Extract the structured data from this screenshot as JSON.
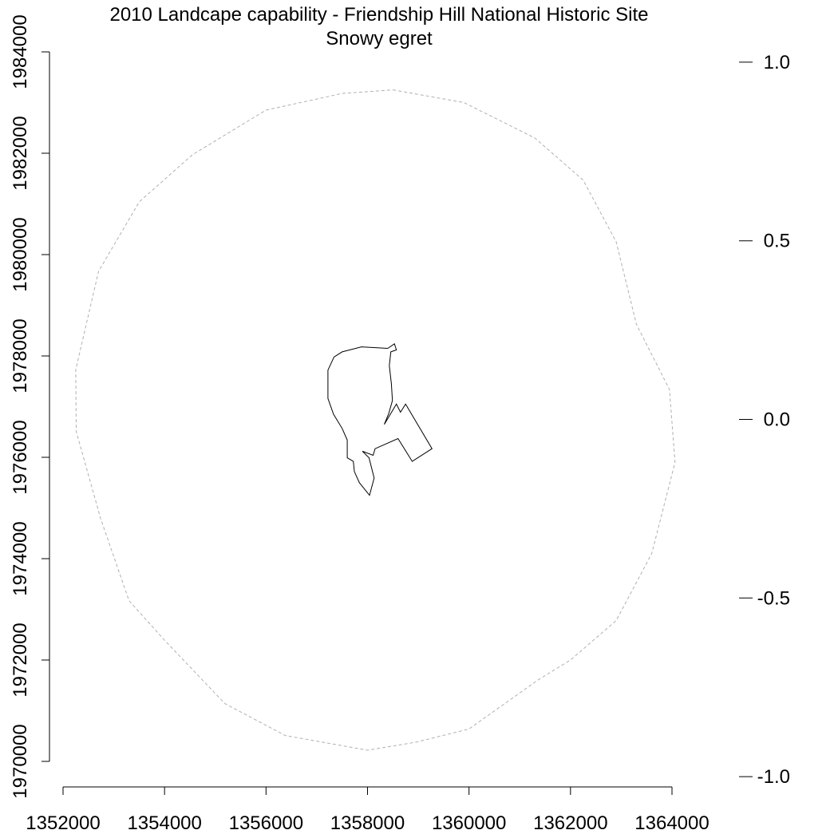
{
  "chart_data": {
    "type": "line",
    "title": "2010 Landcape capability - Friendship Hill National Historic Site",
    "subtitle": "Snowy egret",
    "xlabel": "",
    "ylabel": "",
    "xlim": [
      1352000,
      1364000
    ],
    "ylim": [
      1970000,
      1984000
    ],
    "x_ticks": [
      "1352000",
      "1354000",
      "1356000",
      "1358000",
      "1360000",
      "1362000",
      "1364000"
    ],
    "y_ticks": [
      "1970000",
      "1972000",
      "1974000",
      "1976000",
      "1978000",
      "1980000",
      "1982000",
      "1984000"
    ],
    "legend_scale": {
      "range": [
        -1.25,
        1.25
      ],
      "ticks": [
        "1.0",
        "0.5",
        "0.0",
        "-0.5",
        "-1.0"
      ],
      "values": [
        1.0,
        0.5,
        0.0,
        -0.5,
        -1.0
      ]
    },
    "grid": false,
    "series": [
      {
        "style": "dashed-grey",
        "points": [
          [
            1358500,
            1983250
          ],
          [
            1359900,
            1983000
          ],
          [
            1361300,
            1982300
          ],
          [
            1362250,
            1981470
          ],
          [
            1362900,
            1980250
          ],
          [
            1363300,
            1978620
          ],
          [
            1363950,
            1977340
          ],
          [
            1364060,
            1975900
          ],
          [
            1363600,
            1974100
          ],
          [
            1362900,
            1972780
          ],
          [
            1362000,
            1972000
          ],
          [
            1361350,
            1971600
          ],
          [
            1360000,
            1970640
          ],
          [
            1358960,
            1970380
          ],
          [
            1358000,
            1970220
          ],
          [
            1356380,
            1970510
          ],
          [
            1355190,
            1971140
          ],
          [
            1354000,
            1972390
          ],
          [
            1353300,
            1973170
          ],
          [
            1352740,
            1974790
          ],
          [
            1352260,
            1976510
          ],
          [
            1352250,
            1977730
          ],
          [
            1352700,
            1979670
          ],
          [
            1353500,
            1981040
          ],
          [
            1354550,
            1981970
          ],
          [
            1356000,
            1982850
          ],
          [
            1357500,
            1983180
          ],
          [
            1358500,
            1983250
          ]
        ]
      },
      {
        "style": "solid-black",
        "points": [
          [
            1358400,
            1978150
          ],
          [
            1358530,
            1978240
          ],
          [
            1358570,
            1978120
          ],
          [
            1358460,
            1978080
          ],
          [
            1358430,
            1977810
          ],
          [
            1358470,
            1977450
          ],
          [
            1358490,
            1977120
          ],
          [
            1358420,
            1976870
          ],
          [
            1358330,
            1976650
          ],
          [
            1358570,
            1977050
          ],
          [
            1358650,
            1976890
          ],
          [
            1358750,
            1977050
          ],
          [
            1359270,
            1976170
          ],
          [
            1358880,
            1975920
          ],
          [
            1358600,
            1976370
          ],
          [
            1358150,
            1976170
          ],
          [
            1358110,
            1976040
          ],
          [
            1357900,
            1976120
          ],
          [
            1358030,
            1975990
          ],
          [
            1358130,
            1975590
          ],
          [
            1358040,
            1975250
          ],
          [
            1357840,
            1975500
          ],
          [
            1357740,
            1975720
          ],
          [
            1357720,
            1975920
          ],
          [
            1357600,
            1975990
          ],
          [
            1357600,
            1976340
          ],
          [
            1357500,
            1976570
          ],
          [
            1357330,
            1976850
          ],
          [
            1357220,
            1977160
          ],
          [
            1357220,
            1977720
          ],
          [
            1357340,
            1977980
          ],
          [
            1357500,
            1978080
          ],
          [
            1357880,
            1978180
          ],
          [
            1358400,
            1978150
          ]
        ]
      }
    ]
  }
}
